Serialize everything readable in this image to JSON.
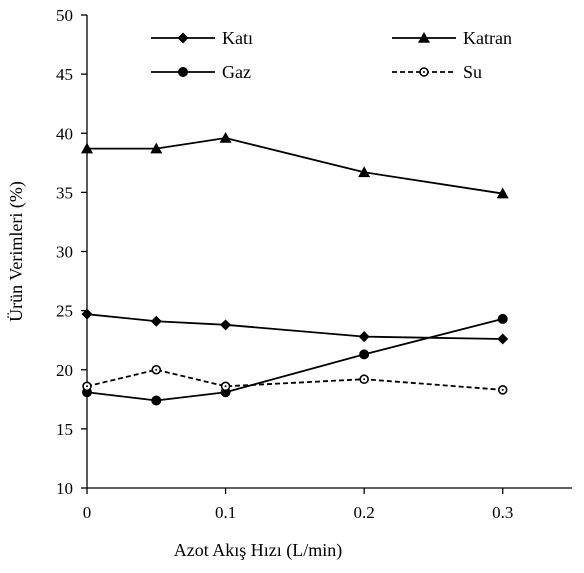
{
  "chart_data": {
    "type": "line",
    "xlabel": "Azot Akış Hızı (L/min)",
    "ylabel": "Ürün Verimleri  (%)",
    "x": [
      0,
      0.05,
      0.1,
      0.2,
      0.3
    ],
    "xlim": [
      0,
      0.35
    ],
    "ylim": [
      10,
      50
    ],
    "xticks": [
      "0",
      "0.1",
      "0.2",
      "0.3"
    ],
    "yticks": [
      "10",
      "15",
      "20",
      "25",
      "30",
      "35",
      "40",
      "45",
      "50"
    ],
    "grid": false,
    "legend_position": "top",
    "series": [
      {
        "name": "Katı",
        "values": [
          24.7,
          24.1,
          23.8,
          22.8,
          22.6
        ],
        "marker": "diamond",
        "line": "solid",
        "color": "#000000"
      },
      {
        "name": "Katran",
        "values": [
          38.7,
          38.7,
          39.6,
          36.7,
          34.9
        ],
        "marker": "triangle",
        "line": "solid",
        "color": "#000000"
      },
      {
        "name": "Gaz",
        "values": [
          18.1,
          17.4,
          18.1,
          21.3,
          24.3
        ],
        "marker": "circle",
        "line": "solid",
        "color": "#000000"
      },
      {
        "name": "Su",
        "values": [
          18.6,
          20.0,
          18.6,
          19.2,
          18.3
        ],
        "marker": "open-circle",
        "line": "dashed",
        "color": "#000000"
      }
    ]
  }
}
